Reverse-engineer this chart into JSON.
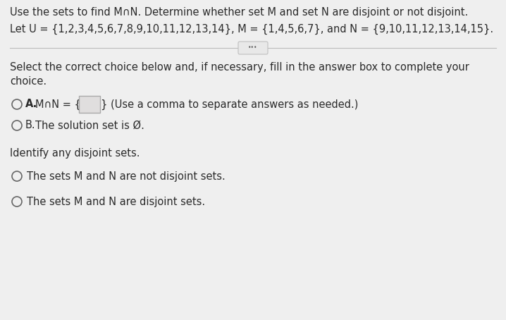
{
  "bg_color": "#f0f0f0",
  "title_line1": "Use the sets to find M∩N. Determine whether set M and set N are disjoint or not disjoint.",
  "title_line2": "Let U = {1,2,3,4,5,6,7,8,9,10,11,12,13,14}, M = {1,4,5,6,7}, and N = {9,10,11,12,13,14,15}.",
  "section_label_line1": "Select the correct choice below and, if necessary, fill in the answer box to complete your",
  "section_label_line2": "choice.",
  "option_a_label": "A.",
  "option_a_mid": "M∩N = {",
  "option_a_suffix": "} (Use a comma to separate answers as needed.)",
  "option_b_label": "B.",
  "option_b_text": "The solution set is Ø.",
  "identify_label": "Identify any disjoint sets.",
  "radio_option1": "The sets M and N are not disjoint sets.",
  "radio_option2": "The sets M and N are disjoint sets.",
  "font_size": 10.5,
  "text_color": "#2a2a2a",
  "line_color": "#bbbbbb",
  "radio_color": "#666666",
  "box_fill": "#e0dede",
  "box_edge": "#aaaaaa"
}
